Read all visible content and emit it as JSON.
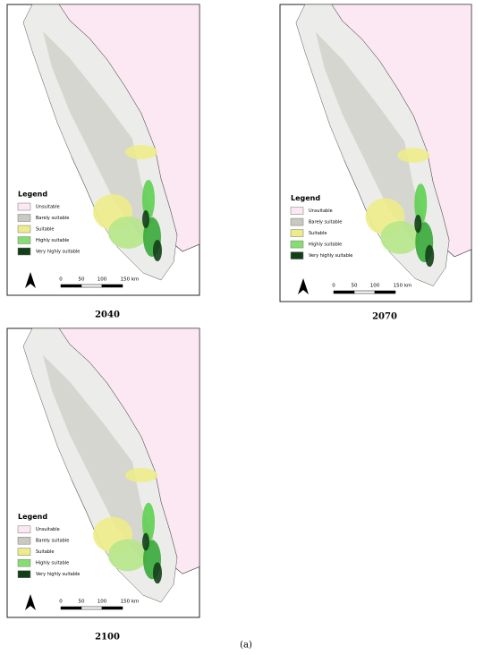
{
  "panels": [
    {
      "year": "2040",
      "unsuitable_color": "#fbe8f2"
    },
    {
      "year": "2070",
      "unsuitable_color": "#fbe8f2"
    },
    {
      "year": "2100",
      "unsuitable_color": "#fbe8f2"
    }
  ],
  "legend": {
    "title": "Legend",
    "items": [
      {
        "label": "Unsuitable",
        "color": "#fbe8f2"
      },
      {
        "label": "Barely suitable",
        "color": "#c9c9c1"
      },
      {
        "label": "Suitable",
        "color": "#eeec8a"
      },
      {
        "label": "Highly suitable",
        "color": "#86dd72"
      },
      {
        "label": "Very highly suitable",
        "color": "#123f17"
      }
    ]
  },
  "scale_labels": [
    "0",
    "50",
    "100",
    "150 km"
  ],
  "caption": "(a)"
}
